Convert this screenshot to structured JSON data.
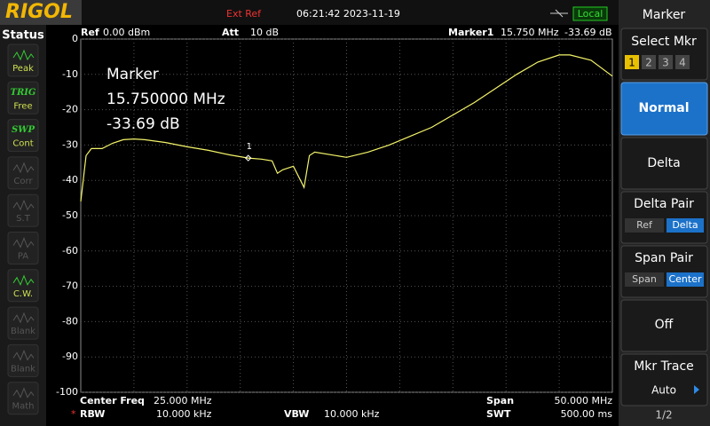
{
  "header": {
    "brand": "RIGOL",
    "ext_ref": "Ext Ref",
    "datetime": "06:21:42 2023-11-19",
    "local": "Local"
  },
  "status_panel": {
    "title": "Status",
    "items": [
      {
        "label": "Peak"
      },
      {
        "top": "TRIG",
        "label": "Free"
      },
      {
        "top": "SWP",
        "label": "Cont"
      },
      {
        "label": "Corr"
      },
      {
        "label": "S.T"
      },
      {
        "label": "PA"
      },
      {
        "label": "C.W."
      },
      {
        "label": "Blank"
      },
      {
        "label": "Blank"
      },
      {
        "label": "Math"
      }
    ]
  },
  "chart_data": {
    "type": "line",
    "color": "#f4f46a",
    "ref": "Ref",
    "ref_level": "0.00 dBm",
    "att": "Att",
    "att_value": "10 dB",
    "marker_title": "Marker1",
    "marker_freq": "15.750 MHz",
    "marker_level": "-33.69 dB",
    "annotation": [
      "Marker",
      "15.750000 MHz",
      "-33.69 dB"
    ],
    "marker": {
      "x": 15.75,
      "y": -33.69,
      "label": "1"
    },
    "x": [
      0,
      0.5,
      1,
      2,
      3,
      4,
      5,
      6,
      8,
      10,
      12,
      14,
      15.75,
      17,
      18,
      18.5,
      19,
      20,
      21,
      21.5,
      22,
      24,
      25,
      27,
      29,
      31,
      33,
      35,
      37,
      39,
      41,
      43,
      45,
      46,
      48,
      50
    ],
    "values": [
      -46,
      -33,
      -31,
      -31,
      -29.5,
      -28.5,
      -28.3,
      -28.5,
      -29.3,
      -30.5,
      -31.5,
      -32.8,
      -33.69,
      -34,
      -34.5,
      -38,
      -37,
      -36,
      -42,
      -33,
      -32,
      -33,
      -33.5,
      -32,
      -30,
      -27.5,
      -25,
      -21.5,
      -18,
      -14,
      -10,
      -6.5,
      -4.5,
      -4.5,
      -6,
      -10.5
    ],
    "xlim": [
      0,
      50
    ],
    "ylim": [
      -100,
      0
    ],
    "yticks": [
      0,
      -10,
      -20,
      -30,
      -40,
      -50,
      -60,
      -70,
      -80,
      -90,
      -100
    ],
    "grid": true
  },
  "settings": {
    "center_label": "Center Freq",
    "center_value": "25.000 MHz",
    "span_label": "Span",
    "span_value": "50.000 MHz",
    "rbw_flag": "*",
    "rbw_label": "RBW",
    "rbw_value": "10.000 kHz",
    "vbw_label": "VBW",
    "vbw_value": "10.000 kHz",
    "swt_label": "SWT",
    "swt_value": "500.00 ms"
  },
  "menu": {
    "title": "Marker",
    "select_mkr": "Select Mkr",
    "markers": [
      "1",
      "2",
      "3",
      "4"
    ],
    "normal": "Normal",
    "delta": "Delta",
    "delta_pair": "Delta Pair",
    "delta_pair_options": [
      "Ref",
      "Delta"
    ],
    "span_pair": "Span Pair",
    "span_pair_options": [
      "Span",
      "Center"
    ],
    "off": "Off",
    "mkr_trace": "Mkr Trace",
    "mkr_trace_value": "Auto",
    "page": "1/2"
  }
}
